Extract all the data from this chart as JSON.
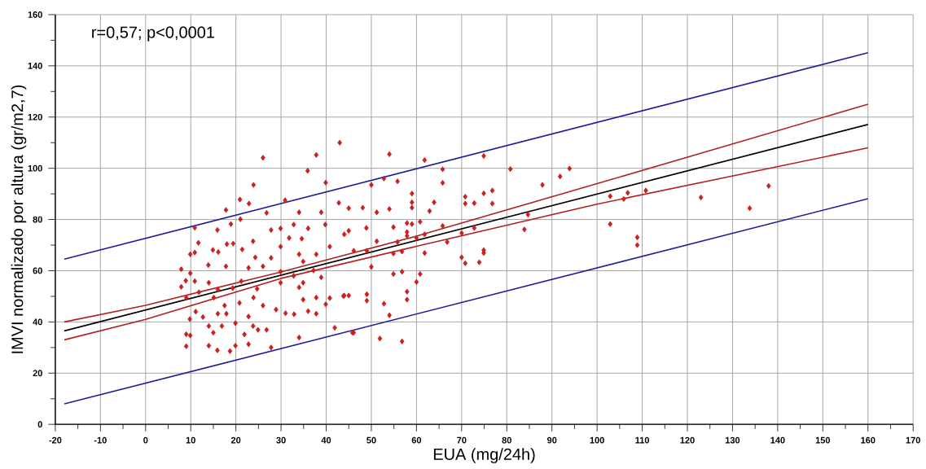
{
  "chart_data": {
    "type": "scatter",
    "xlabel": "EUA (mg/24h)",
    "ylabel": "IMVI normalizado por altura (gr/m2,7)",
    "annotations": [
      "r=0,57; p<0,0001"
    ],
    "xlim": [
      -20,
      170
    ],
    "xticks": [
      -20,
      -10,
      0,
      10,
      20,
      30,
      40,
      50,
      60,
      70,
      80,
      90,
      100,
      110,
      120,
      130,
      140,
      150,
      160,
      170
    ],
    "ylim": [
      0,
      160
    ],
    "yticks": [
      0,
      20,
      40,
      60,
      80,
      100,
      120,
      140,
      160
    ],
    "grid": true,
    "legend": false,
    "series": [
      {
        "marker": "diamond",
        "color": "#cc1f1f",
        "x": [
          43,
          37.8,
          26,
          35.9,
          39.9,
          23.9,
          20.9,
          30.9,
          17.8,
          22.9,
          42.8,
          45,
          34,
          38.9,
          26.8,
          10.9,
          15.9,
          21,
          18.9,
          29.9,
          36,
          27.8,
          32.8,
          39.8,
          11.7,
          23.8,
          31.8,
          34.6,
          18,
          19.4,
          14.9,
          16.1,
          21.4,
          9.9,
          10.9,
          27.8,
          34,
          37.8,
          40.8,
          45,
          29.9,
          24.3,
          7.9,
          13.9,
          17.8,
          22.8,
          26,
          34.9,
          37.2,
          8.9,
          9.9,
          10.9,
          7.9,
          14,
          16,
          19.3,
          21.2,
          24.7,
          29.9,
          29.9,
          32.8,
          34,
          34.9,
          38.9,
          34.9,
          37.8,
          40.8,
          43.8,
          45,
          9,
          11.8,
          15.1,
          17.5,
          20.8,
          23.9,
          26,
          28.9,
          31,
          32.9,
          36,
          37.8,
          39.9,
          11.1,
          12.7,
          9.8,
          16,
          17.9,
          22.8,
          14,
          16.9,
          19.9,
          23.8,
          15,
          21.9,
          24.9,
          26.8,
          34,
          41.9,
          9,
          9.9,
          9,
          14,
          15.9,
          18.7,
          19.9,
          22.8,
          27.8,
          45.8,
          54,
          61.8,
          74.9,
          52.8,
          55.8,
          65.8,
          65.8,
          80.8,
          93.9,
          91.8,
          87.9,
          50,
          59,
          59,
          59,
          63.9,
          62.9,
          48.1,
          51.2,
          54,
          70.8,
          70.8,
          72.8,
          74.9,
          76.8,
          76.8,
          102.9,
          105.9,
          106.8,
          102.9,
          84.7,
          83.9,
          48.9,
          44,
          54.9,
          57.9,
          59,
          60.8,
          57.9,
          57.9,
          60,
          61.8,
          65.8,
          70,
          72.8,
          66.8,
          55.8,
          51.2,
          46.1,
          49,
          54.9,
          56.8,
          61.8,
          74.9,
          74.9,
          70,
          70.8,
          73.9,
          50,
          54.9,
          56.8,
          60.8,
          60,
          44,
          49,
          49,
          52.8,
          57.9,
          57.9,
          54,
          46.1,
          51.9,
          56.8,
          110.8,
          123,
          133.8,
          138,
          108.9,
          108.9
        ],
        "values": [
          110,
          105.2,
          104.1,
          99,
          94.4,
          93.5,
          87.8,
          87.5,
          83.7,
          86.2,
          86.5,
          84.4,
          82.8,
          82.8,
          82.6,
          76.8,
          75.9,
          80.1,
          78.2,
          76.5,
          76.5,
          75.9,
          78,
          78,
          70.9,
          71.5,
          72.8,
          72.5,
          70.4,
          70.6,
          68.1,
          67.3,
          68.3,
          66.4,
          67.1,
          65,
          66.4,
          66.4,
          69.4,
          75.6,
          69.4,
          65.2,
          60.6,
          62.2,
          61.7,
          61.1,
          61.7,
          63.6,
          60.1,
          56.1,
          59,
          55.9,
          53.7,
          55.3,
          52.7,
          53.2,
          55.9,
          52.9,
          59.6,
          55.3,
          58,
          53.5,
          55.3,
          57.4,
          48.7,
          49.5,
          49.3,
          50.1,
          50.3,
          49.5,
          51.6,
          49.5,
          46.4,
          47.4,
          49.5,
          46.4,
          44.8,
          43.4,
          43,
          44.2,
          43.2,
          46.9,
          44,
          41.9,
          41.1,
          43.2,
          43.2,
          42.1,
          38.4,
          38.4,
          39.5,
          38.4,
          35.8,
          35.1,
          36.9,
          36.9,
          33.9,
          37.7,
          35.2,
          34.7,
          30.5,
          30.7,
          28.9,
          28.6,
          30.7,
          31.3,
          30,
          35.8,
          105.5,
          103.2,
          104.8,
          96,
          94.9,
          99.6,
          94.3,
          99.7,
          99.9,
          96.8,
          93.5,
          93.5,
          90.1,
          86.7,
          84.6,
          86.7,
          83.3,
          84.6,
          82.8,
          84.1,
          88.9,
          86.2,
          86.4,
          90.2,
          91.3,
          86.2,
          89.1,
          88,
          90.4,
          78.2,
          81.9,
          76.1,
          76.7,
          74.2,
          77,
          78.6,
          78.2,
          79.1,
          75.1,
          73.6,
          72.8,
          74.2,
          77.5,
          74.7,
          76.7,
          71.2,
          71.2,
          71.5,
          67.8,
          67.8,
          66.7,
          67.5,
          66.9,
          68,
          66.9,
          65.2,
          62.9,
          63.3,
          61.5,
          58.7,
          59.6,
          58.7,
          55.6,
          50.3,
          50.8,
          48.3,
          47.1,
          51.8,
          48.7,
          42.6,
          35.8,
          33.5,
          32.4,
          91.3,
          88.6,
          84.4,
          93.1,
          73,
          70
        ]
      },
      {
        "type": "line",
        "marker": "none",
        "color": "#1f1f99",
        "x": [
          -18,
          160
        ],
        "values": [
          64.5,
          145.1
        ]
      },
      {
        "type": "line",
        "marker": "none",
        "color": "#b22222",
        "x": [
          -18,
          0,
          30,
          60,
          100,
          160
        ],
        "values": [
          40,
          46.5,
          59.5,
          73.5,
          94,
          125
        ]
      },
      {
        "type": "line",
        "marker": "none",
        "color": "#000000",
        "x": [
          -18,
          160
        ],
        "values": [
          36.5,
          117.1
        ]
      },
      {
        "type": "line",
        "marker": "none",
        "color": "#b22222",
        "x": [
          -18,
          0,
          30,
          60,
          100,
          160
        ],
        "values": [
          33,
          41,
          57,
          69.5,
          86,
          108
        ]
      },
      {
        "type": "line",
        "marker": "none",
        "color": "#1f1f99",
        "x": [
          -18,
          160
        ],
        "values": [
          8,
          88.1
        ]
      }
    ]
  }
}
